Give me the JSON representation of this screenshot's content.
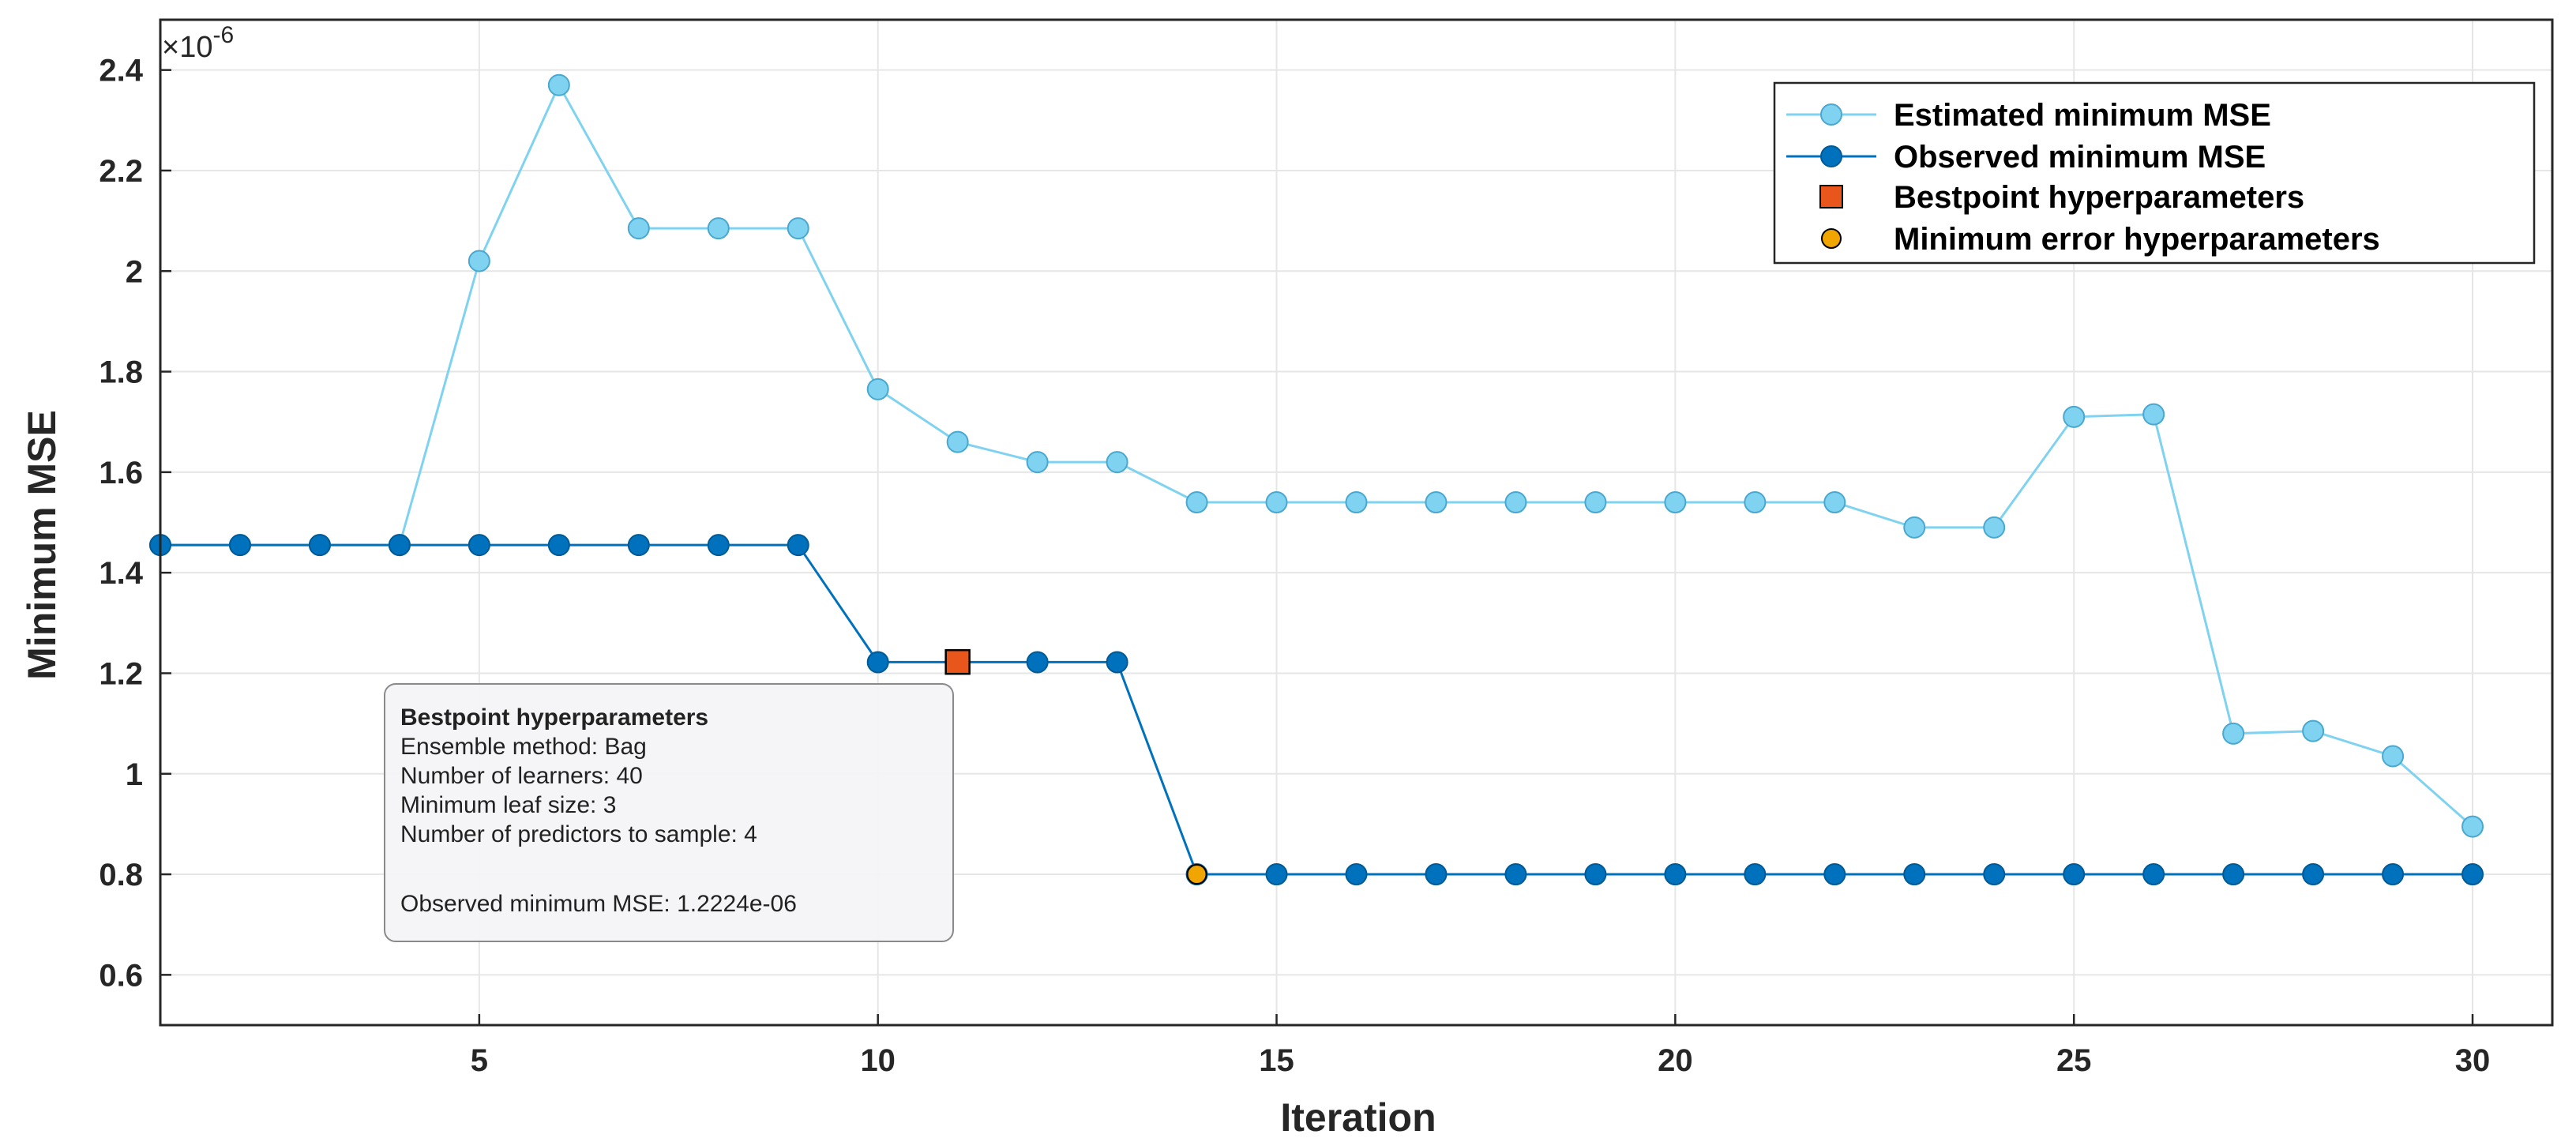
{
  "chart_data": {
    "type": "line",
    "xlabel": "Iteration",
    "ylabel": "Minimum MSE",
    "y_multiplier_base": "×10",
    "y_multiplier_exponent": "-6",
    "xlim": [
      1,
      31
    ],
    "ylim": [
      0.5,
      2.5
    ],
    "x_ticks": [
      5,
      10,
      15,
      20,
      25,
      30
    ],
    "x_tick_labels": [
      "5",
      "10",
      "15",
      "20",
      "25",
      "30"
    ],
    "y_ticks": [
      0.6,
      0.8,
      1.0,
      1.2,
      1.4,
      1.6,
      1.8,
      2.0,
      2.2,
      2.4
    ],
    "y_tick_labels": [
      "0.6",
      "0.8",
      "1",
      "1.2",
      "1.4",
      "1.6",
      "1.8",
      "2",
      "2.2",
      "2.4"
    ],
    "grid": true,
    "legend_position": "top-right",
    "x": [
      1,
      2,
      3,
      4,
      5,
      6,
      7,
      8,
      9,
      10,
      11,
      12,
      13,
      14,
      15,
      16,
      17,
      18,
      19,
      20,
      21,
      22,
      23,
      24,
      25,
      26,
      27,
      28,
      29,
      30
    ],
    "series": [
      {
        "name": "Estimated minimum MSE",
        "color": "#7fd3f0",
        "edge_color": "#4aa8d0",
        "values": [
          1.455,
          1.455,
          1.455,
          1.455,
          2.02,
          2.37,
          2.085,
          2.085,
          2.085,
          1.765,
          1.66,
          1.62,
          1.62,
          1.54,
          1.54,
          1.54,
          1.54,
          1.54,
          1.54,
          1.54,
          1.54,
          1.54,
          1.49,
          1.49,
          1.71,
          1.715,
          1.08,
          1.085,
          1.035,
          0.895
        ]
      },
      {
        "name": "Observed minimum MSE",
        "color": "#0072bd",
        "edge_color": "#005a96",
        "values": [
          1.455,
          1.455,
          1.455,
          1.455,
          1.455,
          1.455,
          1.455,
          1.455,
          1.455,
          1.222,
          1.222,
          1.222,
          1.222,
          0.8,
          0.8,
          0.8,
          0.8,
          0.8,
          0.8,
          0.8,
          0.8,
          0.8,
          0.8,
          0.8,
          0.8,
          0.8,
          0.8,
          0.8,
          0.8,
          0.8
        ]
      }
    ],
    "markers": [
      {
        "name": "Bestpoint hyperparameters",
        "shape": "square",
        "color": "#e8561c",
        "x": 11,
        "y": 1.2224
      },
      {
        "name": "Minimum error hyperparameters",
        "shape": "circle",
        "color": "#f0a500",
        "x": 14,
        "y": 0.8
      }
    ],
    "legend": [
      "Estimated minimum MSE",
      "Observed minimum MSE",
      "Bestpoint hyperparameters",
      "Minimum error hyperparameters"
    ],
    "tooltip": {
      "title": "Bestpoint hyperparameters",
      "lines": [
        "Ensemble method: Bag",
        "Number of learners: 40",
        "Minimum leaf size: 3",
        "Number of predictors to sample: 4",
        "",
        "Observed minimum MSE: 1.2224e-06"
      ]
    }
  }
}
